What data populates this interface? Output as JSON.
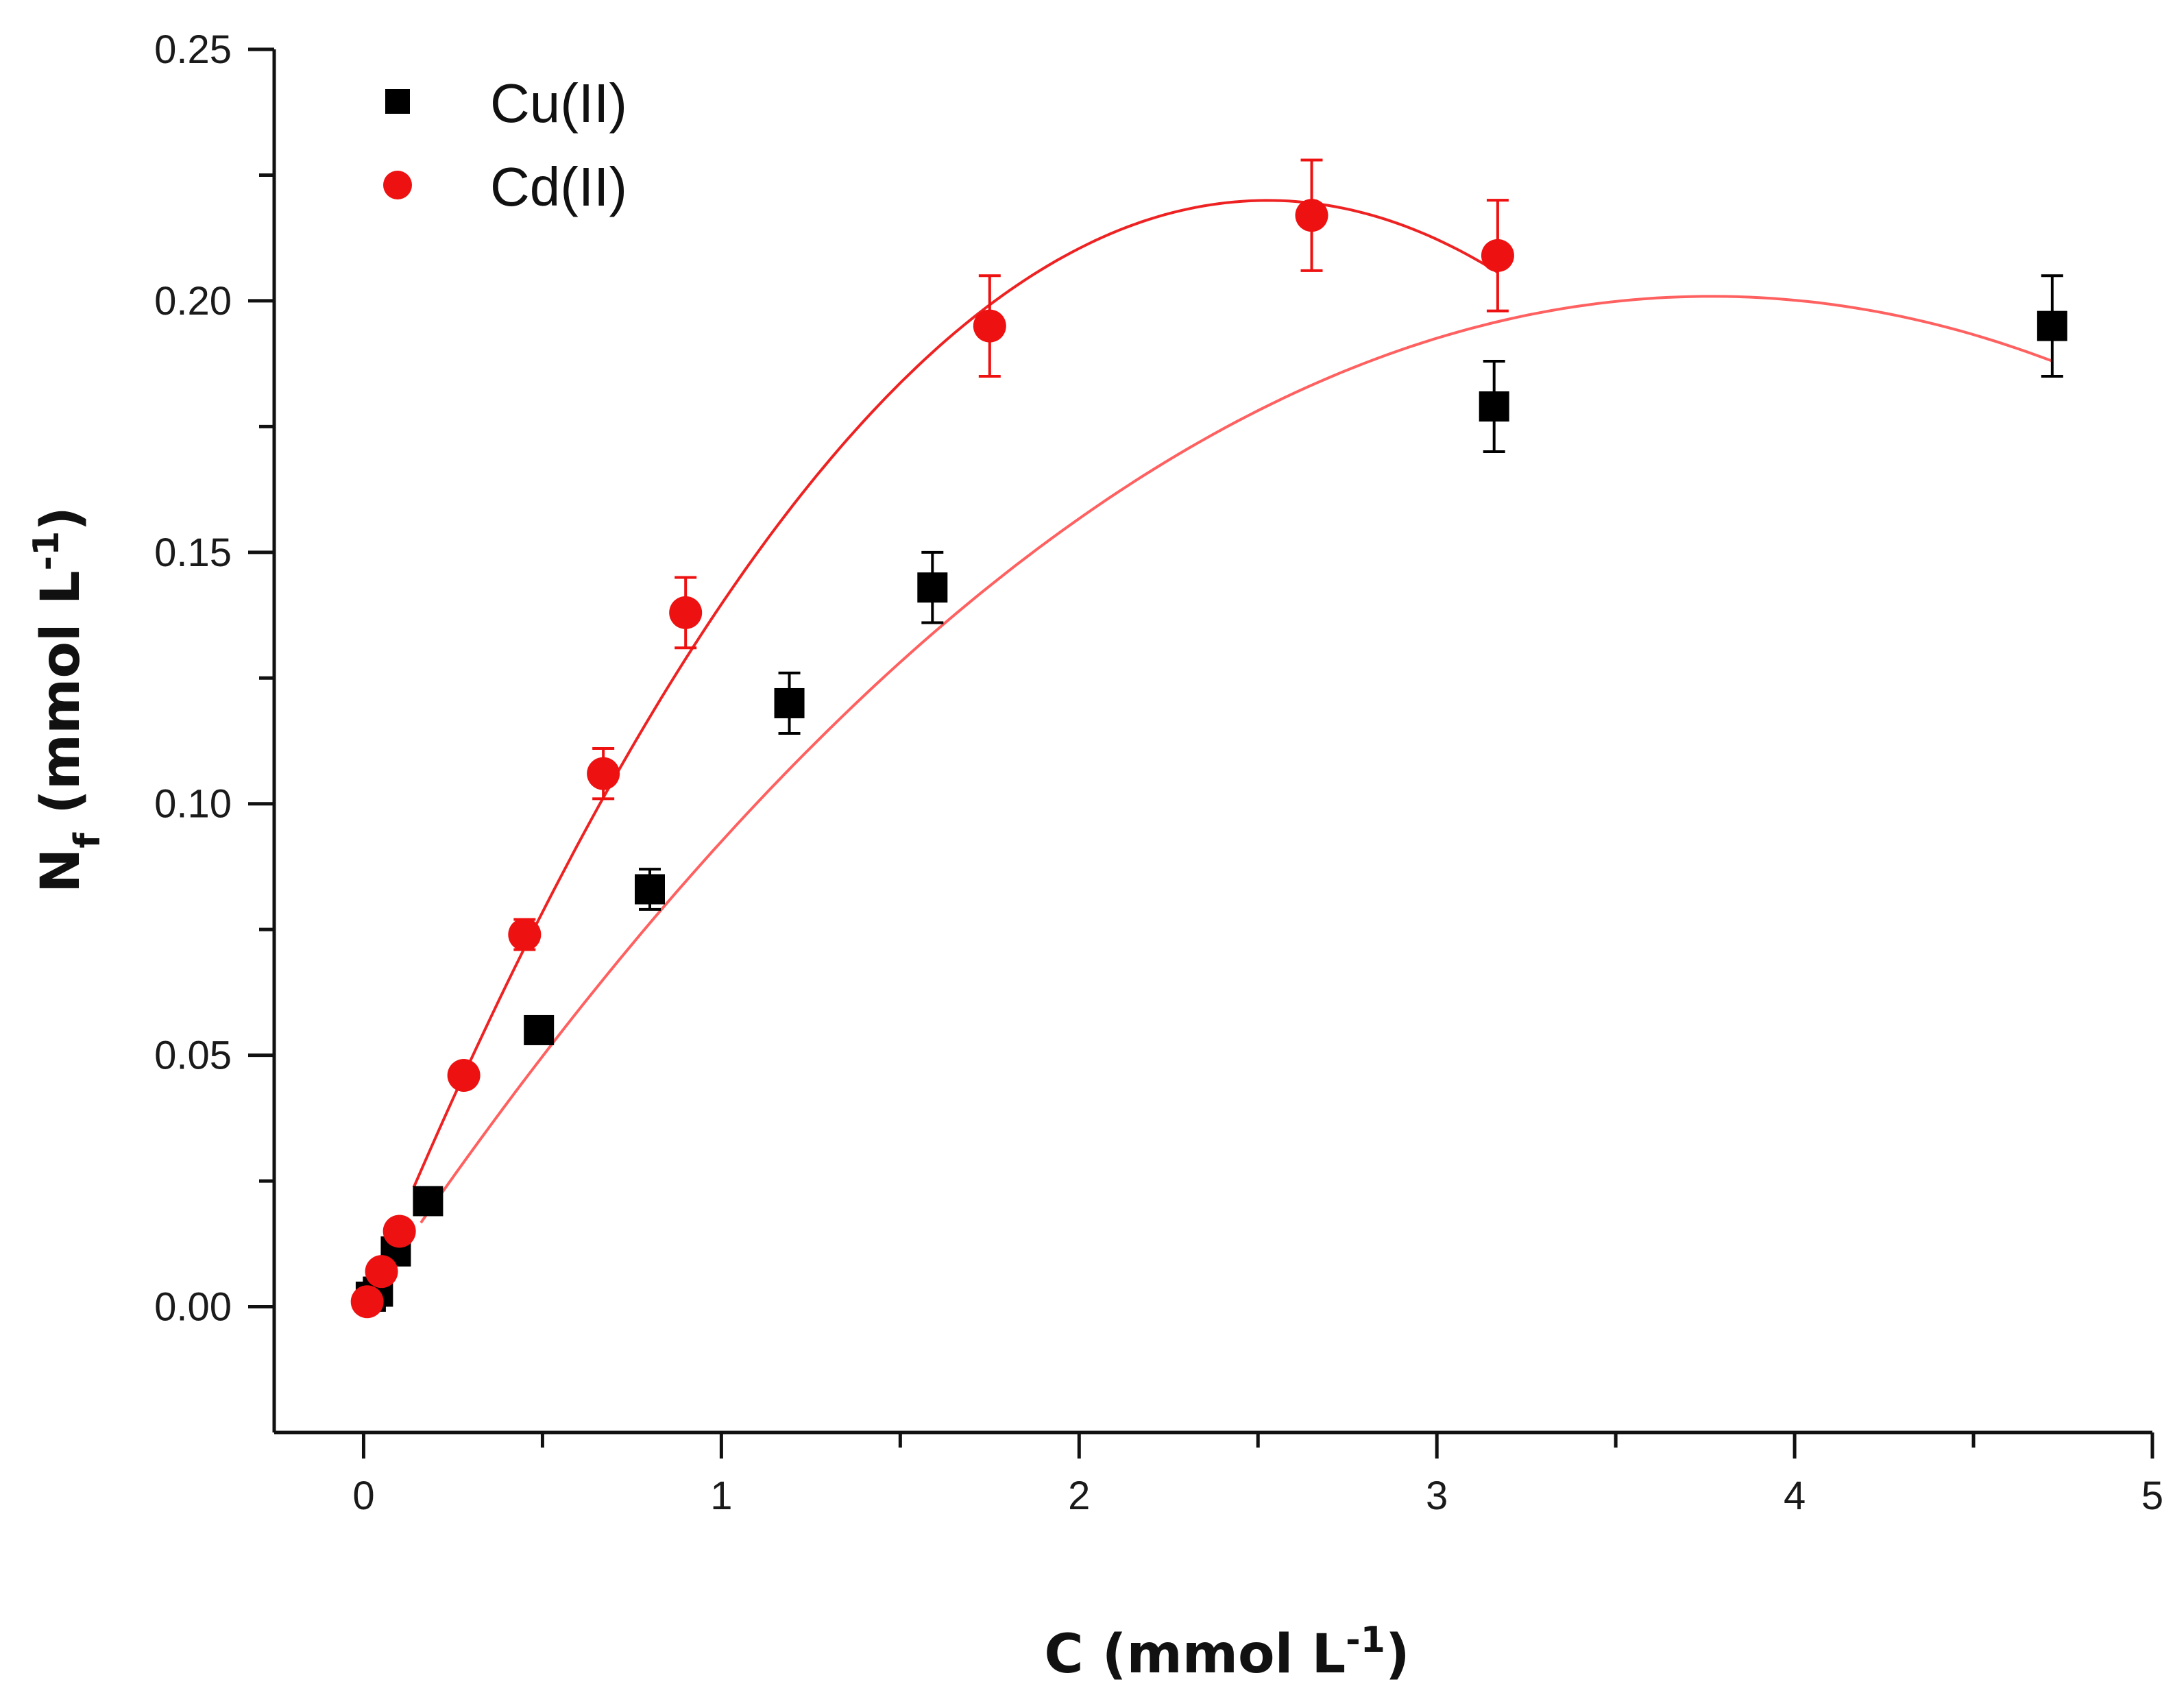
{
  "chart_data": {
    "type": "scatter",
    "title": "",
    "xlabel": {
      "main": "C (mmol L",
      "sup": "-1",
      "close": ")"
    },
    "ylabel": {
      "main": "N",
      "sub": "f",
      "mid": " (mmol L",
      "sup": "-1",
      "close": ")"
    },
    "xlim": [
      -0.25,
      5
    ],
    "ylim": [
      -0.025,
      0.25
    ],
    "x_ticks": [
      0,
      1,
      2,
      3,
      4,
      5
    ],
    "x_tick_labels": [
      "0",
      "1",
      "2",
      "3",
      "4",
      "5"
    ],
    "x_minor_ticks": [
      0.5,
      1.5,
      2.5,
      3.5,
      4.5
    ],
    "y_ticks": [
      0.0,
      0.05,
      0.1,
      0.15,
      0.2,
      0.25
    ],
    "y_tick_labels": [
      "0.00",
      "0.05",
      "0.10",
      "0.15",
      "0.20",
      "0.25"
    ],
    "y_minor_ticks": [
      0.025,
      0.075,
      0.125,
      0.175,
      0.225
    ],
    "grid": false,
    "legend_position": "top-left",
    "series": [
      {
        "name": "Cu(II)",
        "marker": "square",
        "color": "#000000",
        "x": [
          0.02,
          0.04,
          0.09,
          0.18,
          0.49,
          0.8,
          1.19,
          1.59,
          3.16,
          4.72
        ],
        "y": [
          0.002,
          0.003,
          0.011,
          0.021,
          0.055,
          0.083,
          0.12,
          0.143,
          0.179,
          0.195
        ],
        "err": [
          0.001,
          0.001,
          0.002,
          0.002,
          0.002,
          0.004,
          0.006,
          0.007,
          0.009,
          0.01
        ],
        "fit": {
          "type": "quadratic",
          "a": -0.01416,
          "b": 0.10667,
          "c": 0.0,
          "x_range": [
            0.16,
            4.72
          ],
          "color": "#ff6060"
        }
      },
      {
        "name": "Cd(II)",
        "marker": "circle",
        "color": "#ee1111",
        "x": [
          0.01,
          0.05,
          0.1,
          0.28,
          0.45,
          0.67,
          0.9,
          1.75,
          2.65,
          3.17
        ],
        "y": [
          0.001,
          0.007,
          0.015,
          0.046,
          0.074,
          0.106,
          0.138,
          0.195,
          0.217,
          0.209
        ],
        "err": [
          0.001,
          0.001,
          0.002,
          0.002,
          0.003,
          0.005,
          0.007,
          0.01,
          0.011,
          0.011
        ],
        "fit": {
          "type": "quadratic",
          "a": -0.03447,
          "b": 0.17415,
          "c": 0.0,
          "x_range": [
            0.14,
            3.17
          ],
          "color": "#ee2222"
        }
      }
    ]
  }
}
